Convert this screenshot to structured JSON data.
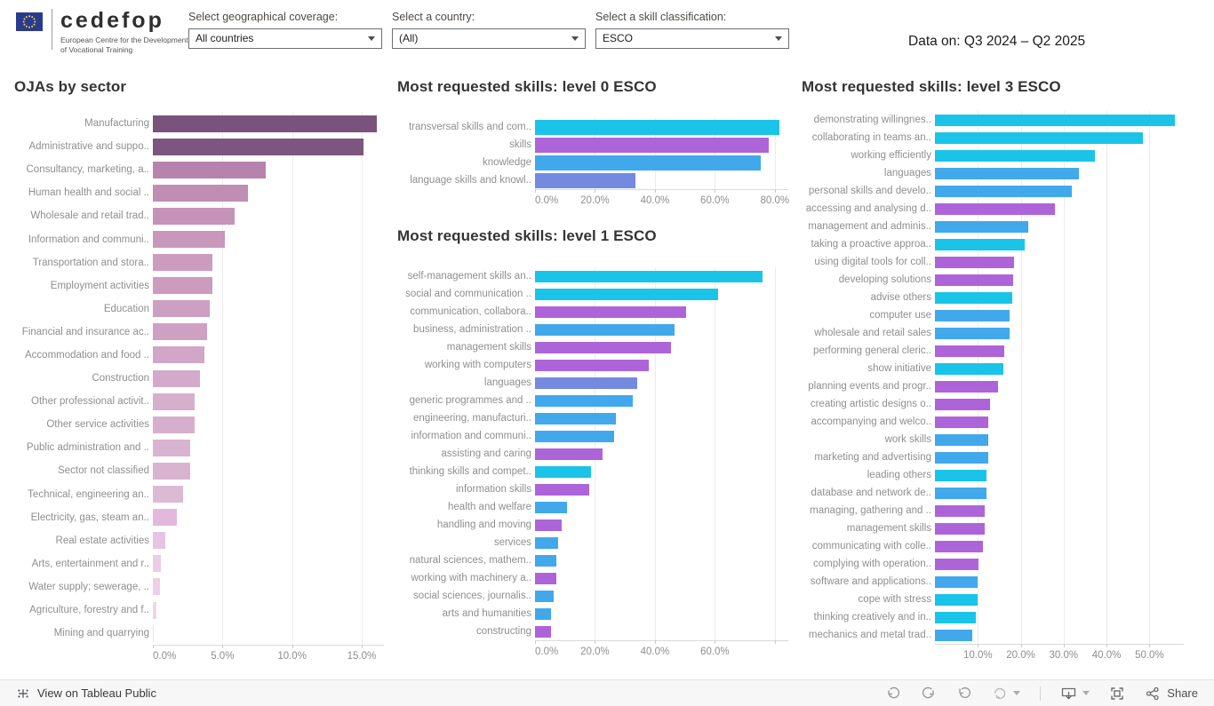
{
  "header": {
    "logo": {
      "org": "cedefop",
      "tagline_line1": "European Centre for the Development",
      "tagline_line2": "of Vocational Training",
      "flag_color": "#2a3b8f",
      "star_color": "#f5d539"
    },
    "filters": [
      {
        "label": "Select geographical coverage:",
        "value": "All countries"
      },
      {
        "label": "Select a country:",
        "value": "(All)"
      },
      {
        "label": "Select a skill classification:",
        "value": "ESCO"
      }
    ],
    "data_on": "Data on: Q3 2024 – Q2 2025"
  },
  "palette": {
    "cyan": "#1AC4E8",
    "purple": "#AE64D9",
    "blue": "#42A8EC",
    "indigo": "#7489E0"
  },
  "chart_data": [
    {
      "type": "bar",
      "orientation": "horizontal",
      "title": "OJAs by sector",
      "xlabel": "",
      "xlim": [
        0,
        16.6
      ],
      "ticks": [
        {
          "v": 0,
          "label": "0.0%"
        },
        {
          "v": 5,
          "label": "5.0%"
        },
        {
          "v": 10,
          "label": "10.0%"
        },
        {
          "v": 15,
          "label": "15.0%"
        }
      ],
      "categories": [
        "Manufacturing",
        "Administrative and suppo..",
        "Consultancy, marketing, a..",
        "Human health and social ..",
        "Wholesale and retail trad..",
        "Information and communi..",
        "Transportation and stora..",
        "Employment activities",
        "Education",
        "Financial and insurance ac..",
        "Accommodation and food ..",
        "Construction",
        "Other professional activit..",
        "Other service activities",
        "Public administration and ..",
        "Sector not classified",
        "Technical, engineering an..",
        "Electricity, gas, steam an..",
        "Real estate activities",
        "Arts, entertainment and r..",
        "Water supply; sewerage, ..",
        "Agriculture, forestry and f..",
        "Mining and quarrying"
      ],
      "values": [
        16.1,
        15.1,
        8.1,
        6.8,
        5.9,
        5.2,
        4.3,
        4.3,
        4.1,
        3.9,
        3.7,
        3.4,
        3.0,
        3.0,
        2.7,
        2.7,
        2.2,
        1.7,
        0.9,
        0.6,
        0.5,
        0.25,
        0.05
      ],
      "colors": [
        "#7A527E",
        "#7D5581",
        "#B783AC",
        "#C08DB3",
        "#C693B8",
        "#C997BB",
        "#CB9CBE",
        "#CB9CBE",
        "#CD9FC0",
        "#CEA1C2",
        "#D1A6C6",
        "#D3AAC9",
        "#D6AFCC",
        "#D6AFCC",
        "#D9B4D0",
        "#D9B4D0",
        "#DCBAD4",
        "#E2B9DB",
        "#E7C4E2",
        "#EBCCE6",
        "#ECCFE7",
        "#EFD7EA",
        "#F0DCEC"
      ]
    },
    {
      "type": "bar",
      "orientation": "horizontal",
      "title": "Most requested skills: level 0 ESCO",
      "xlabel": "",
      "xlim": [
        0,
        84.5
      ],
      "ticks": [
        {
          "v": 0,
          "label": "0.0%"
        },
        {
          "v": 20,
          "label": "20.0%"
        },
        {
          "v": 40,
          "label": "40.0%"
        },
        {
          "v": 60,
          "label": "60.0%"
        },
        {
          "v": 80,
          "label": "80.0%"
        }
      ],
      "categories": [
        "transversal skills and com..",
        "skills",
        "knowledge",
        "language skills and knowl.."
      ],
      "values": [
        81.5,
        78.0,
        75.3,
        33.5
      ],
      "colors": [
        "#1AC4E8",
        "#AE64D9",
        "#42A8EC",
        "#7489E0"
      ]
    },
    {
      "type": "bar",
      "orientation": "horizontal",
      "title": "Most requested skills: level 1 ESCO",
      "xlabel": "",
      "xlim": [
        0,
        84.5
      ],
      "ticks": [
        {
          "v": 0,
          "label": "0.0%"
        },
        {
          "v": 20,
          "label": "20.0%"
        },
        {
          "v": 40,
          "label": "40.0%"
        },
        {
          "v": 60,
          "label": "60.0%"
        },
        {
          "v": 80,
          "label": ""
        }
      ],
      "categories": [
        "self-management skills an..",
        "social and communication ..",
        "communication, collabora..",
        "business, administration ..",
        "management skills",
        "working with computers",
        "languages",
        "generic programmes and ..",
        "engineering, manufacturi..",
        "information and communi..",
        "assisting and caring",
        "thinking skills and compet..",
        "information skills",
        "health and welfare",
        "handling and moving",
        "services",
        "natural sciences, mathem..",
        "working with machinery a..",
        "social sciences, journalis..",
        "arts and humanities",
        "constructing"
      ],
      "values": [
        76,
        61,
        50.5,
        46.5,
        45.5,
        38,
        34,
        32.5,
        27,
        26.5,
        22.5,
        18.8,
        18.2,
        10.7,
        8.9,
        7.7,
        7.1,
        7.1,
        6.3,
        5.4,
        5.4
      ],
      "colors": [
        "#1AC4E8",
        "#1AC4E8",
        "#AE64D9",
        "#42A8EC",
        "#AE64D9",
        "#AE64D9",
        "#7489E0",
        "#42A8EC",
        "#42A8EC",
        "#42A8EC",
        "#AE64D9",
        "#1AC4E8",
        "#AE64D9",
        "#42A8EC",
        "#AE64D9",
        "#42A8EC",
        "#42A8EC",
        "#AE64D9",
        "#42A8EC",
        "#42A8EC",
        "#AE64D9"
      ]
    },
    {
      "type": "bar",
      "orientation": "horizontal",
      "title": "Most requested skills: level 3 ESCO",
      "xlabel": "",
      "xlim": [
        0,
        58
      ],
      "ticks": [
        {
          "v": 10,
          "label": "10.0%"
        },
        {
          "v": 20,
          "label": "20.0%"
        },
        {
          "v": 30,
          "label": "30.0%"
        },
        {
          "v": 40,
          "label": "40.0%"
        },
        {
          "v": 50,
          "label": "50.0%"
        }
      ],
      "categories": [
        "demonstrating willingnes..",
        "collaborating in teams an..",
        "working efficiently",
        "languages",
        "personal skills and develo..",
        "accessing and analysing d..",
        "management and adminis..",
        "taking a proactive approa..",
        "using digital tools for coll..",
        "developing solutions",
        "advise others",
        "computer use",
        "wholesale and retail sales",
        "performing general cleric..",
        "show initiative",
        "planning events and progr..",
        "creating artistic designs o..",
        "accompanying and welco..",
        "work skills",
        "marketing and advertising",
        "leading others",
        "database and network de..",
        "managing, gathering and ..",
        "management skills",
        "communicating with colle..",
        "complying with operation..",
        "software and applications..",
        "cope with stress",
        "thinking creatively and in..",
        "mechanics and metal trad.."
      ],
      "values": [
        56,
        48.5,
        37.3,
        33.5,
        32,
        28,
        21.7,
        21,
        18.4,
        18.2,
        18,
        17.4,
        17.3,
        16.1,
        15.9,
        14.8,
        12.8,
        12.5,
        12.4,
        12.4,
        12.1,
        12,
        11.6,
        11.5,
        11.1,
        10.2,
        9.9,
        9.9,
        9.5,
        8.8
      ],
      "colors": [
        "#1AC4E8",
        "#1AC4E8",
        "#1AC4E8",
        "#42A8EC",
        "#42A8EC",
        "#AE64D9",
        "#42A8EC",
        "#1AC4E8",
        "#AE64D9",
        "#AE64D9",
        "#1AC4E8",
        "#42A8EC",
        "#42A8EC",
        "#AE64D9",
        "#1AC4E8",
        "#AE64D9",
        "#AE64D9",
        "#AE64D9",
        "#42A8EC",
        "#42A8EC",
        "#1AC4E8",
        "#42A8EC",
        "#AE64D9",
        "#AE64D9",
        "#AE64D9",
        "#AE64D9",
        "#42A8EC",
        "#1AC4E8",
        "#1AC4E8",
        "#42A8EC"
      ]
    }
  ],
  "toolbar": {
    "view_text": "View on Tableau Public",
    "share_label": "Share"
  }
}
